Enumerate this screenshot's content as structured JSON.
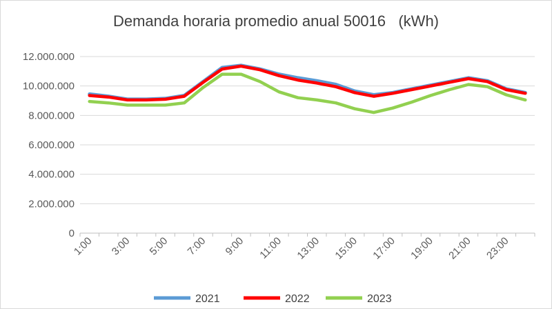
{
  "chart_data": {
    "type": "line",
    "title": "Demanda horaria promedio anual 50016   (kWh)",
    "x": [
      "1:00",
      "2:00",
      "3:00",
      "4:00",
      "5:00",
      "6:00",
      "7:00",
      "8:00",
      "9:00",
      "10:00",
      "11:00",
      "12:00",
      "13:00",
      "14:00",
      "15:00",
      "16:00",
      "17:00",
      "18:00",
      "19:00",
      "20:00",
      "21:00",
      "22:00",
      "23:00",
      "24:00"
    ],
    "x_tick_labels": [
      "1:00",
      "3:00",
      "5:00",
      "7:00",
      "9:00",
      "11:00",
      "13:00",
      "15:00",
      "17:00",
      "19:00",
      "21:00",
      "23:00"
    ],
    "y_tick_labels": [
      "0",
      "2.000.000",
      "4.000.000",
      "6.000.000",
      "8.000.000",
      "10.000.000",
      "12.000.000"
    ],
    "ylim": [
      0,
      12000000
    ],
    "grid": "horizontal",
    "legend": "bottom",
    "series": [
      {
        "name": "2021",
        "color": "#5b9bd5",
        "values": [
          9450000,
          9300000,
          9100000,
          9100000,
          9150000,
          9350000,
          10300000,
          11250000,
          11400000,
          11150000,
          10800000,
          10550000,
          10350000,
          10100000,
          9650000,
          9400000,
          9550000,
          9800000,
          10050000,
          10300000,
          10550000,
          10350000,
          9800000,
          9550000
        ]
      },
      {
        "name": "2022",
        "color": "#ff0000",
        "values": [
          9350000,
          9250000,
          9050000,
          9050000,
          9100000,
          9300000,
          10250000,
          11150000,
          11350000,
          11100000,
          10700000,
          10400000,
          10200000,
          9950000,
          9550000,
          9300000,
          9500000,
          9750000,
          10000000,
          10250000,
          10500000,
          10300000,
          9750000,
          9500000
        ]
      },
      {
        "name": "2023",
        "color": "#92d050",
        "values": [
          8950000,
          8850000,
          8700000,
          8700000,
          8700000,
          8850000,
          9900000,
          10800000,
          10800000,
          10300000,
          9600000,
          9200000,
          9050000,
          8850000,
          8450000,
          8200000,
          8500000,
          8900000,
          9350000,
          9750000,
          10100000,
          9950000,
          9400000,
          9050000
        ]
      }
    ]
  }
}
